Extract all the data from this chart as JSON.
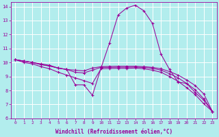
{
  "xlabel": "Windchill (Refroidissement éolien,°C)",
  "background_color": "#b2eded",
  "grid_color": "#ffffff",
  "line_color": "#990099",
  "xlim": [
    -0.5,
    23.5
  ],
  "ylim": [
    6,
    14.3
  ],
  "xticks": [
    0,
    1,
    2,
    3,
    4,
    5,
    6,
    7,
    8,
    9,
    10,
    11,
    12,
    13,
    14,
    15,
    16,
    17,
    18,
    19,
    20,
    21,
    22,
    23
  ],
  "yticks": [
    6,
    7,
    8,
    9,
    10,
    11,
    12,
    13,
    14
  ],
  "series": [
    {
      "x": [
        0,
        1,
        2,
        3,
        4,
        5,
        6,
        7,
        8,
        9,
        10,
        11,
        12,
        13,
        14,
        15,
        16,
        17,
        18,
        19,
        20,
        21,
        22,
        23
      ],
      "y": [
        10.2,
        10.1,
        10.0,
        9.9,
        9.8,
        9.6,
        9.5,
        8.4,
        8.4,
        7.65,
        9.6,
        11.4,
        13.4,
        13.9,
        14.1,
        13.7,
        12.8,
        10.6,
        9.5,
        8.6,
        8.5,
        7.85,
        7.3,
        6.5
      ]
    },
    {
      "x": [
        0,
        1,
        2,
        3,
        4,
        5,
        6,
        7,
        8,
        9,
        10,
        11,
        12,
        13,
        14,
        15,
        16,
        17,
        18,
        19,
        20,
        21,
        22,
        23
      ],
      "y": [
        10.2,
        10.1,
        10.0,
        9.85,
        9.75,
        9.6,
        9.5,
        9.45,
        9.4,
        9.6,
        9.7,
        9.72,
        9.73,
        9.73,
        9.73,
        9.7,
        9.65,
        9.55,
        9.35,
        9.1,
        8.75,
        8.35,
        7.75,
        6.5
      ]
    },
    {
      "x": [
        0,
        1,
        2,
        3,
        4,
        5,
        6,
        7,
        8,
        9,
        10,
        11,
        12,
        13,
        14,
        15,
        16,
        17,
        18,
        19,
        20,
        21,
        22,
        23
      ],
      "y": [
        10.2,
        10.1,
        10.0,
        9.85,
        9.75,
        9.6,
        9.5,
        9.3,
        9.25,
        9.45,
        9.65,
        9.65,
        9.66,
        9.66,
        9.67,
        9.64,
        9.58,
        9.45,
        9.2,
        8.9,
        8.5,
        8.05,
        7.4,
        6.5
      ]
    },
    {
      "x": [
        0,
        1,
        2,
        3,
        4,
        5,
        6,
        7,
        8,
        9,
        10,
        11,
        12,
        13,
        14,
        15,
        16,
        17,
        18,
        19,
        20,
        21,
        22,
        23
      ],
      "y": [
        10.2,
        10.0,
        9.9,
        9.7,
        9.55,
        9.3,
        9.1,
        8.9,
        8.7,
        8.5,
        9.55,
        9.57,
        9.58,
        9.58,
        9.6,
        9.55,
        9.45,
        9.3,
        9.0,
        8.65,
        8.2,
        7.7,
        7.05,
        6.5
      ]
    }
  ]
}
